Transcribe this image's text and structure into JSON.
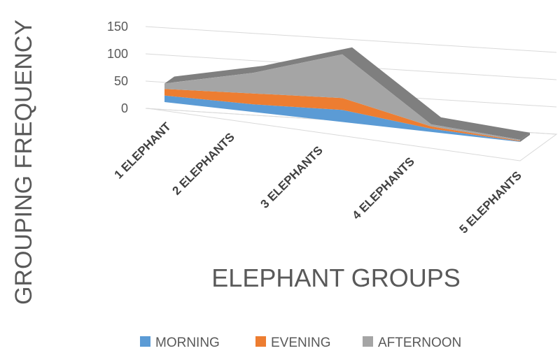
{
  "chart_data": {
    "type": "area",
    "style": "3d-stacked-area",
    "title": "",
    "xlabel": "ELEPHANT GROUPS",
    "ylabel": "GROUPING FREQUENCY",
    "categories": [
      "1 ELEPHANT",
      "2 ELEPHANTS",
      "3 ELEPHANTS",
      "4 ELEPHANTS",
      "5 ELEPHANTS"
    ],
    "yticks": [
      "0",
      "50",
      "100",
      "150"
    ],
    "ylim": [
      0,
      150
    ],
    "grid": true,
    "legend_position": "bottom",
    "series": [
      {
        "name": "MORNING",
        "color": "#5b9bd5",
        "values": [
          12,
          14,
          22,
          6,
          1
        ]
      },
      {
        "name": "EVENING",
        "color": "#ed7d31",
        "values": [
          12,
          20,
          22,
          4,
          1
        ]
      },
      {
        "name": "AFTERNOON",
        "color": "#a5a5a5",
        "values": [
          10,
          38,
          80,
          4,
          2
        ]
      }
    ]
  }
}
